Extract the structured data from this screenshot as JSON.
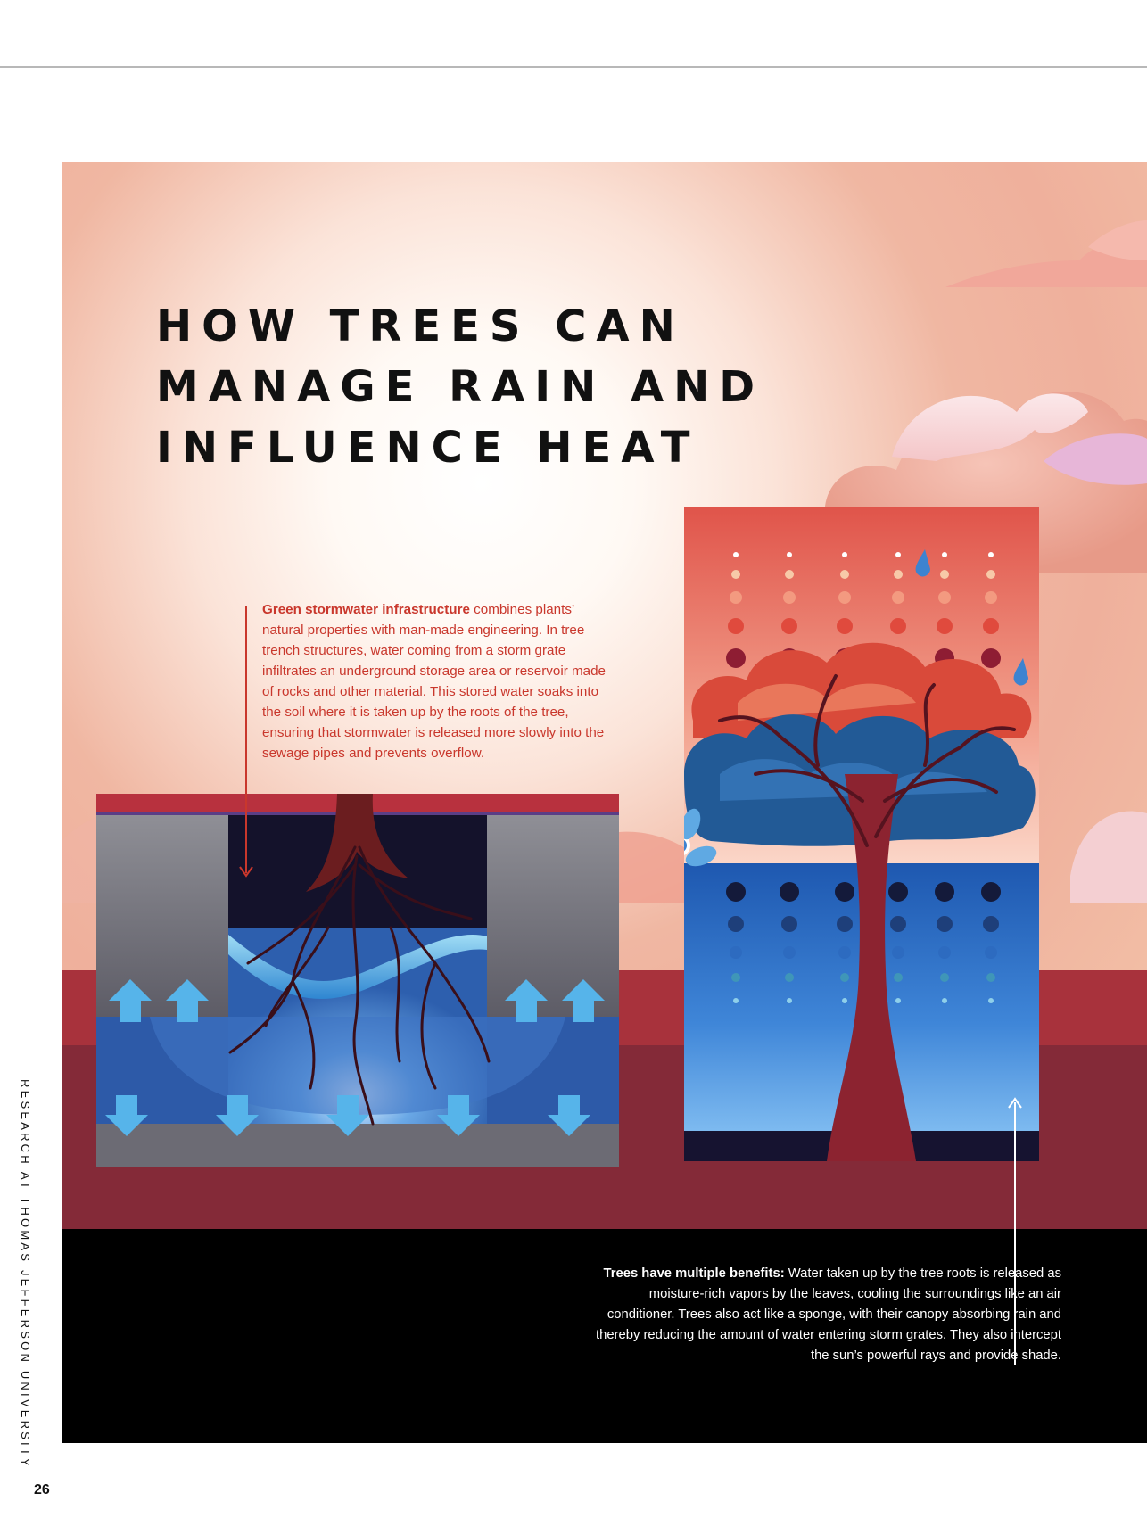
{
  "title_lines": [
    "HOW TREES CAN",
    "MANAGE RAIN AND",
    "INFLUENCE HEAT"
  ],
  "caption_green": {
    "lead": "Green stormwater infrastructure",
    "text": " combines plants’ natural properties with man-made engineering. In tree trench structures, water coming from a storm grate infiltrates an underground storage area or reservoir made of rocks and other material. This stored water soaks into the soil where it is taken up by the roots of the tree, ensuring that stormwater is released more slowly into the sewage pipes and prevents overflow."
  },
  "caption_white": {
    "lead": "Trees have multiple benefits:",
    "text": " Water taken up by the tree roots is released as moisture-rich vapors by the leaves, cooling the surroundings like an air conditioner. Trees also act like a sponge, with their canopy absorbing rain and thereby reducing the amount of water entering storm grates. They also intercept the sun’s powerful rays and provide shade."
  },
  "footer": {
    "publication": "RESEARCH AT THOMAS JEFFERSON UNIVERSITY",
    "page_number": "26"
  },
  "colors": {
    "accent_red": "#c9372c",
    "ground_red": "#a8323c",
    "deep_maroon": "#842a38",
    "water_blue": "#3a7fd0",
    "arrow_blue": "#56b4ea"
  }
}
